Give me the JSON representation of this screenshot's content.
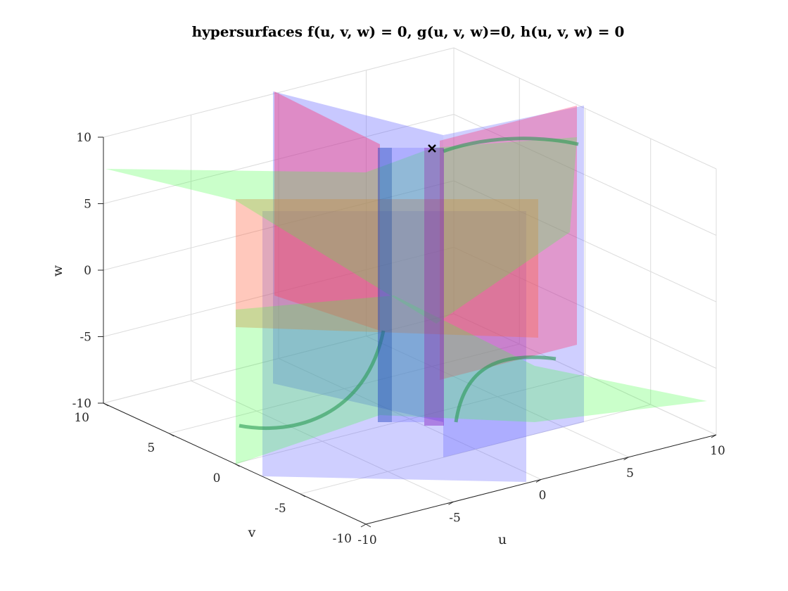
{
  "chart_data": {
    "type": "surface3d",
    "title": "hypersurfaces f(u, v, w) = 0, g(u, v, w)=0, h(u, v, w) = 0",
    "xlabel": "u",
    "ylabel": "v",
    "zlabel": "w",
    "xlim": [
      -10,
      10
    ],
    "ylim": [
      -10,
      10
    ],
    "zlim": [
      -10,
      10
    ],
    "xticks": [
      -10,
      -5,
      0,
      5,
      10
    ],
    "yticks": [
      -10,
      -5,
      0,
      5,
      10
    ],
    "zticks": [
      -10,
      -5,
      0,
      5,
      10
    ],
    "grid": true,
    "surfaces": [
      {
        "id": "f",
        "color": "#ff4060"
      },
      {
        "id": "g",
        "color": "#40ff40"
      },
      {
        "id": "h",
        "color": "#6060ff"
      }
    ],
    "marker": {
      "symbol": "x",
      "u": 0,
      "v": 0,
      "w": 8.8,
      "color": "#000000"
    }
  }
}
